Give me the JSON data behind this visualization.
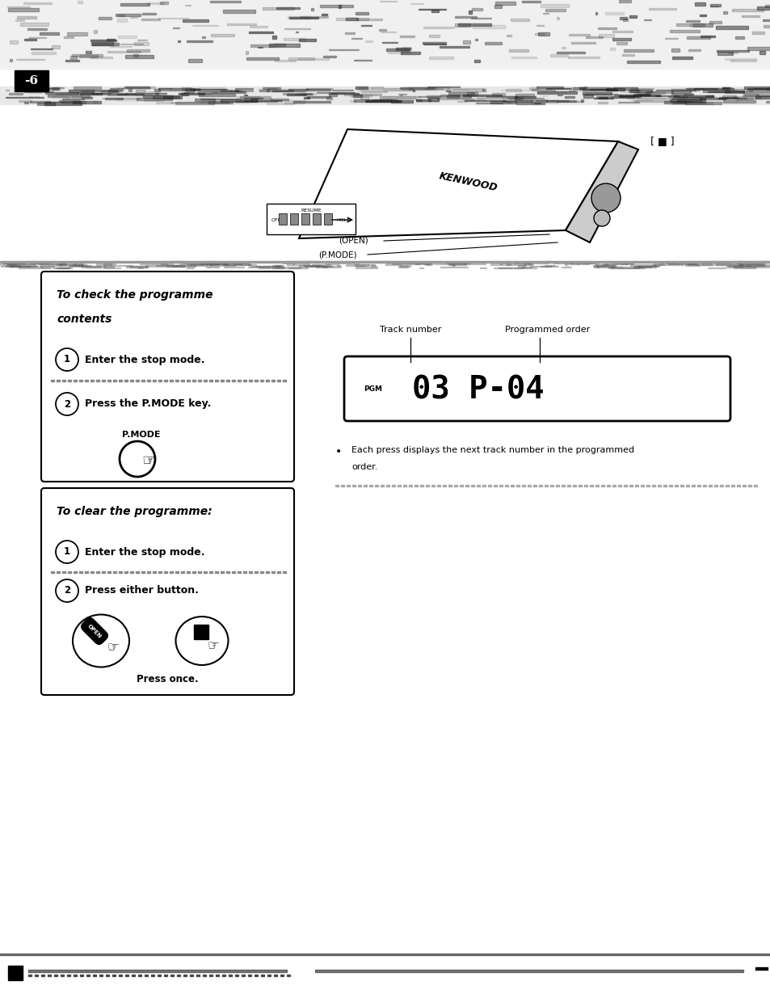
{
  "page_bg": "#ffffff",
  "page_width": 9.54,
  "page_height": 12.35,
  "page_num": "-6",
  "section1_title_line1": "To check the programme",
  "section1_title_line2": "contents",
  "section1_step1": "Enter the stop mode.",
  "section1_step2": "Press the P.MODE key.",
  "section1_pmode_label": "P.MODE",
  "section2_title": "To clear the programme:",
  "section2_step1": "Enter the stop mode.",
  "section2_step2": "Press either button.",
  "section2_bottom": "Press once.",
  "display_label_left": "Track number",
  "display_label_right": "Programmed order",
  "display_text": "03 P-04",
  "display_pgm": "PGM",
  "bullet_note_line1": "Each press displays the next track number in the programmed",
  "bullet_note_line2": "order.",
  "open_label": "(OPEN)",
  "pmode_label": "(P.MODE)",
  "stop_label": "[ ■ ]"
}
